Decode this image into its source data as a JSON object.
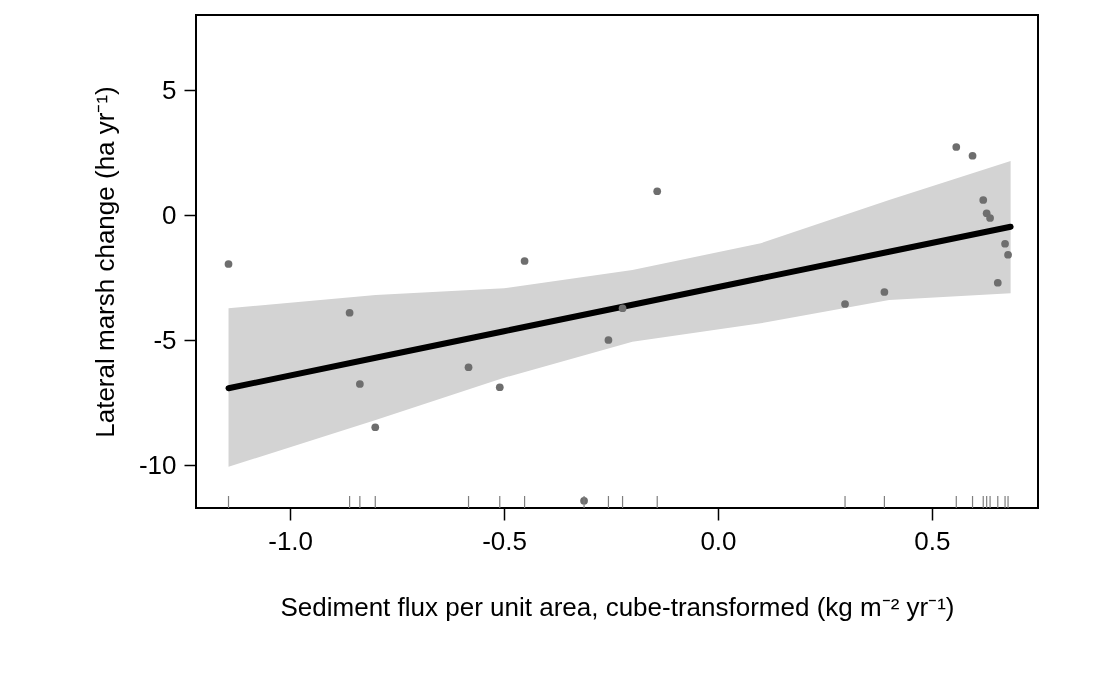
{
  "chart_data": {
    "type": "scatter",
    "xlabel": "Sediment flux per unit area, cube-transformed (kg m⁻² yr⁻¹)",
    "ylabel": "Lateral marsh change (ha yr⁻¹)",
    "xlim": [
      -1.22,
      0.748
    ],
    "ylim": [
      -11.72,
      8.0
    ],
    "xticks": [
      {
        "value": -1,
        "label": "-1.0"
      },
      {
        "value": -0.5,
        "label": "-0.5"
      },
      {
        "value": 0,
        "label": "0.0"
      },
      {
        "value": 0.5,
        "label": "0.5"
      }
    ],
    "yticks": [
      5,
      0,
      -5,
      -10
    ],
    "grid": false,
    "series": [
      {
        "type": "scatter",
        "marker": "circle",
        "color": "#6e6e6e",
        "x": [
          -1.144,
          -0.861,
          -0.837,
          -0.801,
          -0.583,
          -0.51,
          -0.452,
          -0.313,
          -0.256,
          -0.223,
          -0.142,
          0.297,
          0.389,
          0.557,
          0.595,
          0.62,
          0.628,
          0.636,
          0.671,
          0.678,
          0.654
        ],
        "values": [
          -1.96,
          -3.91,
          -6.76,
          -8.49,
          -6.09,
          -6.89,
          -1.84,
          -11.43,
          -5.0,
          -3.73,
          0.95,
          -3.56,
          -3.08,
          2.72,
          2.37,
          0.6,
          0.07,
          -0.12,
          -1.15,
          -1.59,
          -2.71
        ]
      },
      {
        "type": "line",
        "marker": "none",
        "color": "#000000",
        "line_style": "solid",
        "x": [
          -1.144,
          -0.8,
          -0.5,
          -0.2,
          0.1,
          0.4,
          0.684
        ],
        "values": [
          -6.93,
          -5.71,
          -4.65,
          -3.59,
          -2.53,
          -1.47,
          -0.47
        ],
        "lower": [
          -10.07,
          -8.2,
          -6.51,
          -5.07,
          -4.33,
          -3.4,
          -3.13
        ],
        "upper": [
          -3.73,
          -3.2,
          -2.93,
          -2.2,
          -1.13,
          0.6,
          2.16
        ]
      }
    ]
  }
}
